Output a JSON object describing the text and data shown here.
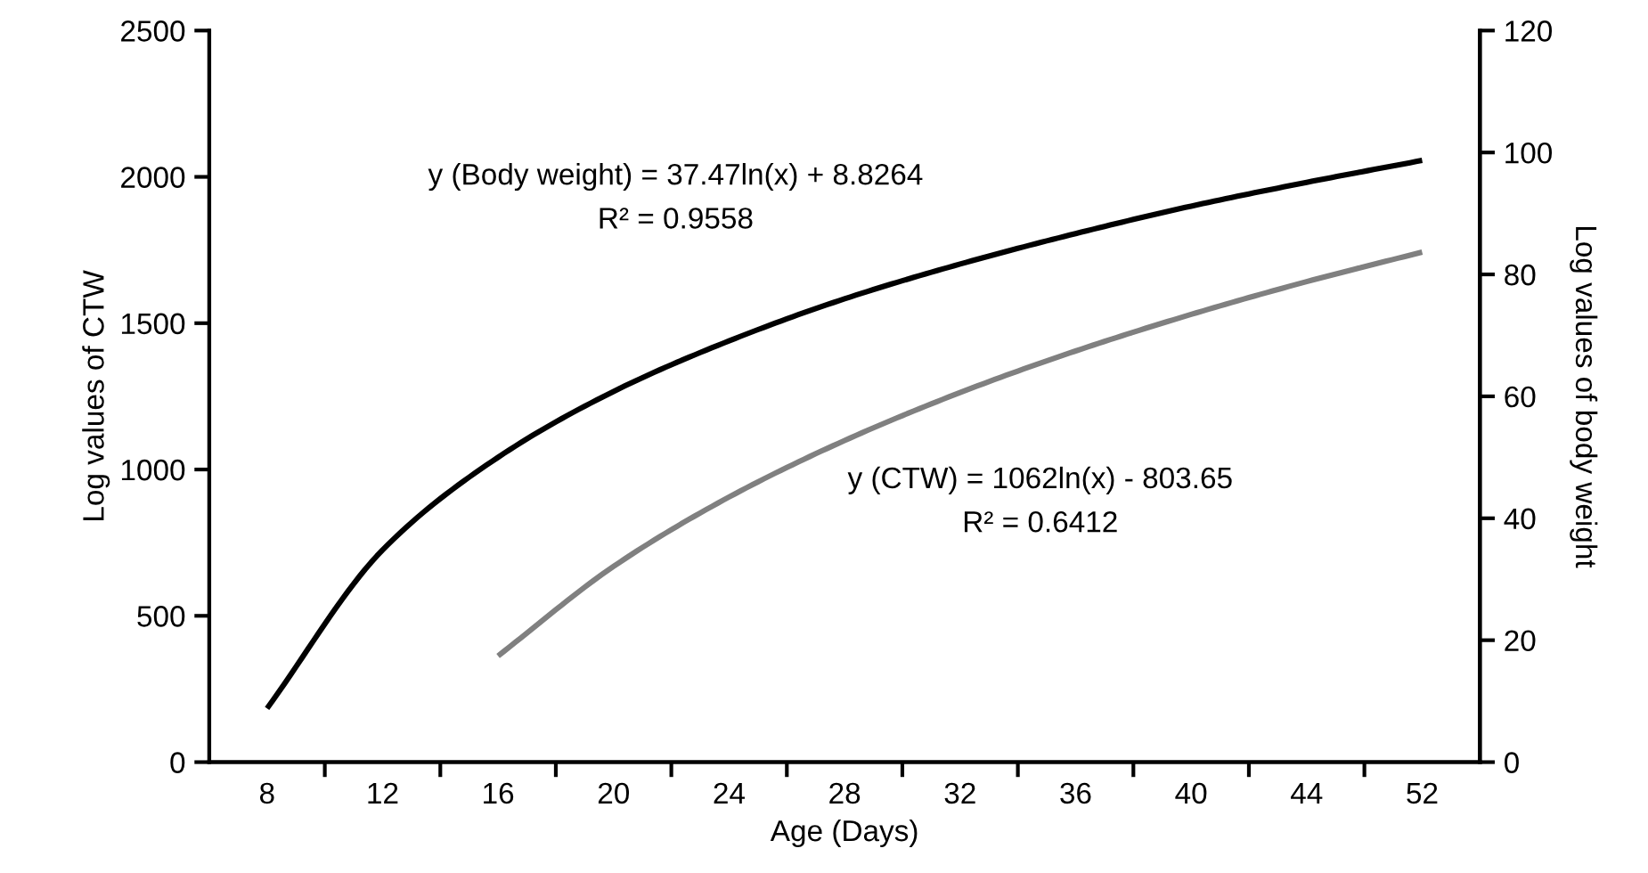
{
  "chart_data": {
    "type": "line",
    "xlabel": "Age (Days)",
    "ylabel": "Log values of CTW",
    "y2label": "Log values of body weight",
    "categories": [
      "8",
      "12",
      "16",
      "20",
      "24",
      "28",
      "32",
      "36",
      "40",
      "44",
      "52"
    ],
    "ylim": [
      0,
      2500
    ],
    "yticks": [
      0,
      500,
      1000,
      1500,
      2000,
      2500
    ],
    "y2lim": [
      0,
      120
    ],
    "y2ticks": [
      0,
      20,
      40,
      60,
      80,
      100,
      120
    ],
    "series": [
      {
        "color": "#000000",
        "axis": "y2",
        "values": [
          8.8,
          34.8,
          50.0,
          60.8,
          69.1,
          76.0,
          81.7,
          86.7,
          91.2,
          95.1,
          98.7
        ]
      },
      {
        "color": "#808080",
        "values": [
          null,
          null,
          363,
          669,
          906,
          1099,
          1263,
          1405,
          1530,
          1642,
          1743
        ]
      }
    ],
    "grid": false,
    "marker": "none",
    "line_style": "solid",
    "annotations": [
      "y (Body weight) = 37.47ln(x) + 8.8264",
      "R² = 0.9558",
      "y (CTW) = 1062ln(x) - 803.65",
      "R² = 0.6412"
    ]
  }
}
